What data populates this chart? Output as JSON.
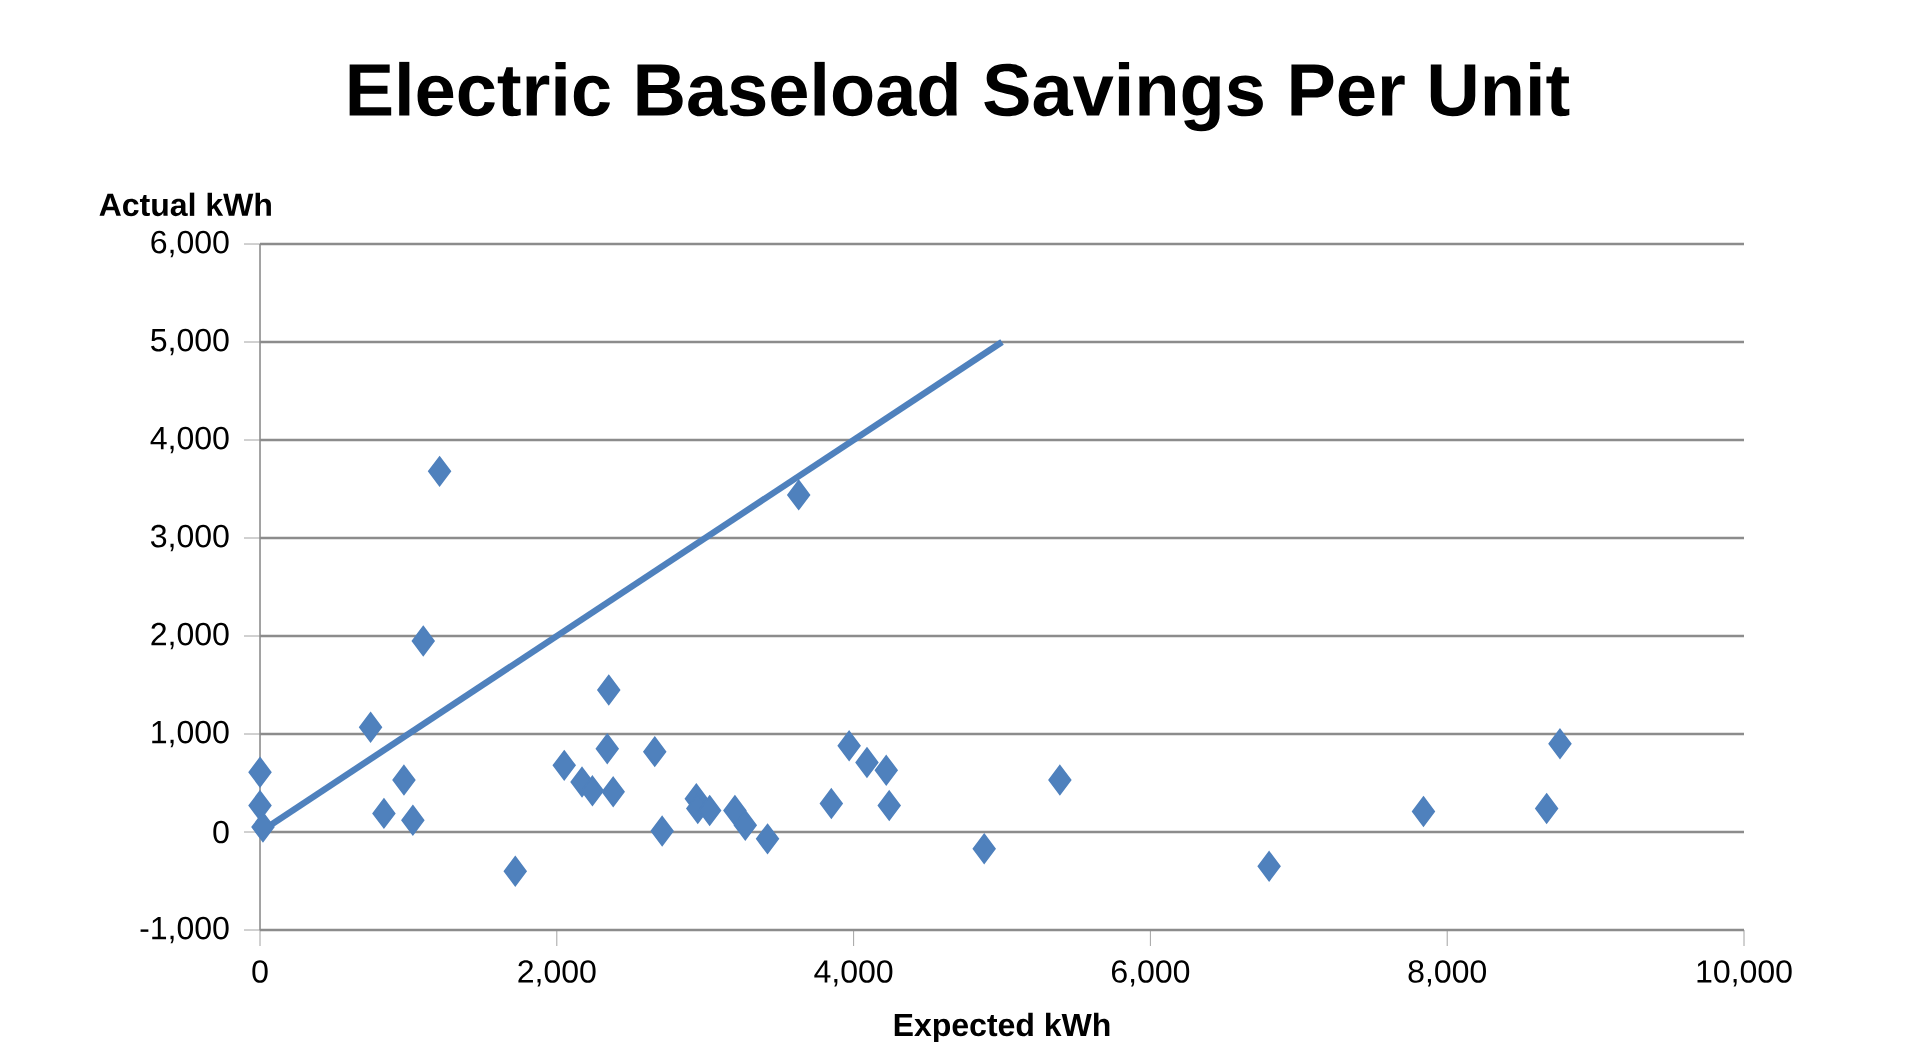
{
  "chart_data": {
    "type": "scatter",
    "title": "Electric Baseload Savings Per Unit",
    "xlabel": "Expected kWh",
    "ylabel": "Actual kWh",
    "xlim": [
      0,
      10000
    ],
    "ylim": [
      -1000,
      6000
    ],
    "xticks": [
      {
        "value": 0,
        "label": "0"
      },
      {
        "value": 2000,
        "label": "2,000"
      },
      {
        "value": 4000,
        "label": "4,000"
      },
      {
        "value": 6000,
        "label": "6,000"
      },
      {
        "value": 8000,
        "label": "8,000"
      },
      {
        "value": 10000,
        "label": "10,000"
      }
    ],
    "yticks": [
      {
        "value": -1000,
        "label": "-1,000"
      },
      {
        "value": 0,
        "label": "0"
      },
      {
        "value": 1000,
        "label": "1,000"
      },
      {
        "value": 2000,
        "label": "2,000"
      },
      {
        "value": 3000,
        "label": "3,000"
      },
      {
        "value": 4000,
        "label": "4,000"
      },
      {
        "value": 5000,
        "label": "5,000"
      },
      {
        "value": 6000,
        "label": "6,000"
      }
    ],
    "grid": "y",
    "series": [
      {
        "marker": "diamond",
        "color": "#4f81bd",
        "x": [
          0,
          0,
          20,
          745,
          1100,
          1210,
          970,
          835,
          1030,
          1720,
          2050,
          2170,
          2240,
          2350,
          2340,
          2380,
          2660,
          2710,
          2940,
          2950,
          3030,
          3200,
          3270,
          3420,
          3630,
          3850,
          3970,
          4090,
          4220,
          4240,
          4880,
          5390,
          6800,
          7840,
          8670,
          8760
        ],
        "values": [
          610,
          270,
          50,
          1070,
          1950,
          3680,
          530,
          190,
          120,
          -400,
          680,
          510,
          420,
          1450,
          850,
          410,
          820,
          10,
          340,
          240,
          220,
          220,
          70,
          -70,
          3440,
          290,
          880,
          710,
          630,
          270,
          -170,
          530,
          -350,
          210,
          240,
          900
        ]
      },
      {
        "type": "line",
        "marker": "none",
        "color": "#4f81bd",
        "line_style": "solid",
        "x": [
          0,
          5000
        ],
        "values": [
          0,
          5000
        ]
      }
    ]
  }
}
